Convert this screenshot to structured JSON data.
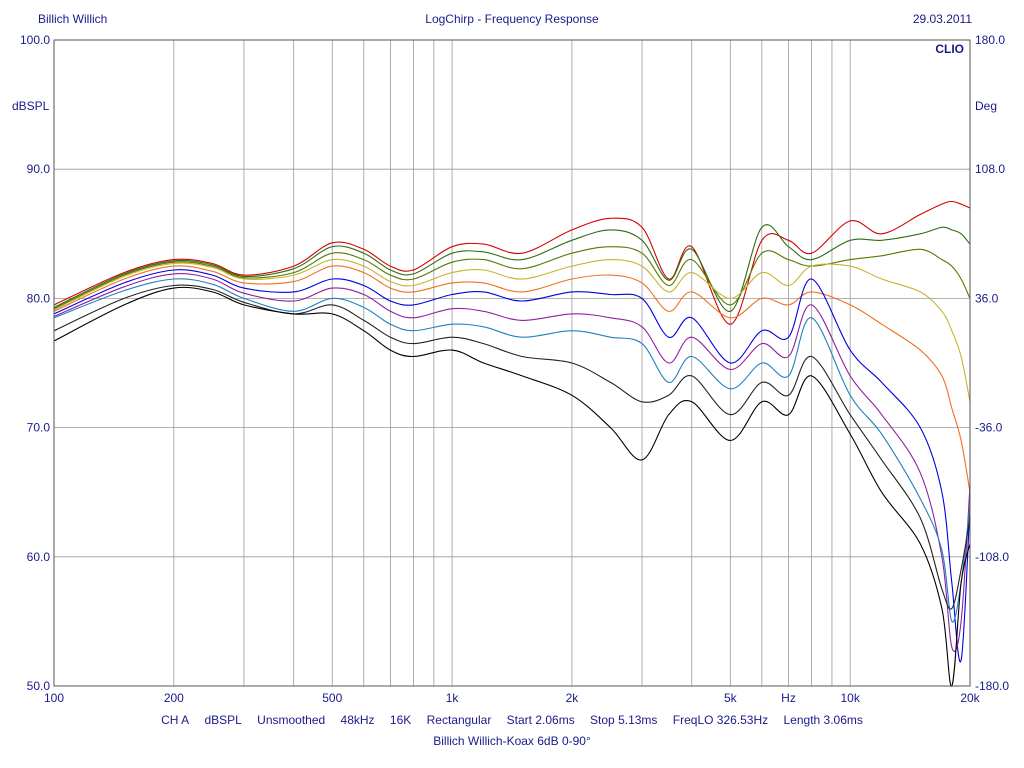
{
  "header": {
    "left": "Billich Willich",
    "center": "LogChirp - Frequency Response",
    "right": "29.03.2011"
  },
  "footer": {
    "settings": [
      "CH A",
      "dBSPL",
      "Unsmoothed",
      "48kHz",
      "16K",
      "Rectangular",
      "Start 2.06ms",
      "Stop 5.13ms",
      "FreqLO 326.53Hz",
      "Length 3.06ms"
    ],
    "title": "Billich Willich-Koax 6dB 0-90°"
  },
  "colors": {
    "text": "#1a1a8c",
    "grid": "#9a9a9a",
    "series": [
      "#d40000",
      "#2e6e10",
      "#557a00",
      "#c8b430",
      "#f07020",
      "#0000dd",
      "#9020a0",
      "#2080c0",
      "#222222",
      "#000000"
    ]
  },
  "chart_data": {
    "type": "line",
    "brand": "CLIO",
    "xlabel_unit": "Hz",
    "ylabel": "dBSPL",
    "y2label": "Deg",
    "xscale": "log",
    "xlim": [
      100,
      20000
    ],
    "ylim": [
      50,
      100
    ],
    "y2lim": [
      -180,
      180
    ],
    "grid": true,
    "x_tick_labels": [
      {
        "value": 100,
        "label": "100"
      },
      {
        "value": 200,
        "label": "200"
      },
      {
        "value": 500,
        "label": "500"
      },
      {
        "value": 1000,
        "label": "1k"
      },
      {
        "value": 2000,
        "label": "2k"
      },
      {
        "value": 5000,
        "label": "5k"
      },
      {
        "value": 7000,
        "label": "Hz"
      },
      {
        "value": 10000,
        "label": "10k"
      },
      {
        "value": 20000,
        "label": "20k"
      }
    ],
    "y_tick_labels": [
      "100.0",
      "90.0",
      "80.0",
      "70.0",
      "60.0",
      "50.0"
    ],
    "y2_tick_labels": [
      "180.0",
      "108.0",
      "36.0",
      "-36.0",
      "-108.0",
      "-180.0"
    ],
    "x": [
      100,
      150,
      200,
      250,
      300,
      400,
      500,
      600,
      700,
      800,
      1000,
      1200,
      1500,
      2000,
      2500,
      3000,
      3500,
      4000,
      5000,
      6000,
      7000,
      8000,
      10000,
      12000,
      15000,
      17000,
      18000,
      19000,
      20000
    ],
    "series": [
      {
        "values": [
          79.5,
          82.0,
          83.0,
          82.7,
          81.8,
          82.5,
          84.3,
          83.8,
          82.5,
          82.2,
          84.0,
          84.2,
          83.5,
          85.3,
          86.2,
          85.5,
          81.5,
          84.0,
          78.0,
          84.5,
          84.5,
          83.5,
          86.0,
          85.0,
          86.5,
          87.3,
          87.5,
          87.3,
          87.0
        ]
      },
      {
        "values": [
          79.3,
          81.9,
          82.9,
          82.6,
          81.7,
          82.3,
          84.0,
          83.5,
          82.2,
          81.9,
          83.5,
          83.6,
          83.0,
          84.5,
          85.3,
          84.5,
          81.4,
          83.8,
          79.0,
          85.5,
          84.0,
          83.0,
          84.5,
          84.5,
          85.0,
          85.5,
          85.3,
          85.0,
          84.2
        ]
      },
      {
        "values": [
          79.2,
          81.8,
          82.8,
          82.5,
          81.6,
          82.0,
          83.5,
          83.0,
          81.8,
          81.5,
          82.8,
          83.0,
          82.3,
          83.5,
          84.0,
          83.5,
          81.0,
          83.0,
          79.5,
          83.5,
          83.0,
          82.5,
          83.0,
          83.3,
          83.8,
          83.0,
          82.5,
          81.5,
          80.0
        ]
      },
      {
        "values": [
          79.1,
          81.7,
          82.7,
          82.4,
          81.5,
          81.8,
          83.0,
          82.5,
          81.3,
          81.0,
          82.0,
          82.2,
          81.5,
          82.5,
          83.0,
          82.5,
          80.5,
          82.0,
          80.0,
          82.0,
          81.0,
          82.5,
          82.5,
          81.5,
          80.5,
          79.0,
          77.5,
          75.5,
          72.0
        ]
      },
      {
        "values": [
          79.0,
          81.5,
          82.5,
          82.1,
          81.2,
          81.3,
          82.5,
          82.0,
          80.8,
          80.5,
          81.2,
          81.2,
          80.5,
          81.5,
          81.8,
          81.2,
          79.0,
          80.5,
          78.5,
          80.0,
          79.5,
          80.5,
          79.5,
          78.0,
          76.0,
          74.0,
          71.5,
          69.0,
          65.0
        ]
      },
      {
        "values": [
          78.8,
          81.2,
          82.2,
          81.8,
          80.8,
          80.5,
          81.5,
          81.0,
          79.8,
          79.5,
          80.3,
          80.5,
          79.8,
          80.5,
          80.3,
          80.0,
          77.0,
          78.5,
          75.0,
          77.5,
          77.0,
          81.5,
          76.0,
          73.5,
          70.0,
          65.0,
          58.0,
          52.0,
          64.0
        ]
      },
      {
        "values": [
          78.6,
          80.9,
          81.9,
          81.5,
          80.4,
          79.8,
          80.8,
          80.3,
          79.0,
          78.5,
          79.2,
          79.0,
          78.3,
          78.8,
          78.5,
          77.8,
          75.0,
          77.0,
          74.5,
          76.5,
          75.5,
          79.5,
          74.0,
          71.0,
          66.5,
          60.0,
          53.0,
          55.0,
          65.5
        ]
      },
      {
        "values": [
          78.5,
          80.6,
          81.5,
          81.1,
          80.0,
          79.0,
          80.0,
          79.3,
          78.0,
          77.5,
          78.0,
          77.8,
          77.0,
          77.5,
          77.0,
          76.5,
          73.5,
          75.5,
          73.0,
          75.0,
          74.0,
          78.5,
          72.5,
          69.5,
          64.5,
          60.5,
          55.0,
          58.0,
          64.0
        ]
      },
      {
        "values": [
          77.5,
          80.0,
          81.0,
          80.7,
          79.7,
          78.8,
          79.5,
          78.3,
          77.0,
          76.5,
          77.0,
          76.5,
          75.5,
          75.0,
          73.5,
          72.0,
          72.5,
          74.0,
          71.0,
          73.5,
          72.5,
          75.5,
          71.0,
          67.5,
          63.0,
          57.5,
          56.0,
          59.0,
          63.0
        ]
      },
      {
        "values": [
          76.7,
          79.5,
          80.8,
          80.5,
          79.5,
          78.8,
          78.8,
          77.5,
          76.0,
          75.5,
          76.0,
          75.0,
          74.0,
          72.5,
          70.0,
          67.5,
          71.0,
          72.0,
          69.0,
          72.0,
          71.0,
          74.0,
          69.5,
          65.0,
          61.0,
          56.0,
          50.0,
          58.0,
          61.0
        ]
      }
    ]
  }
}
